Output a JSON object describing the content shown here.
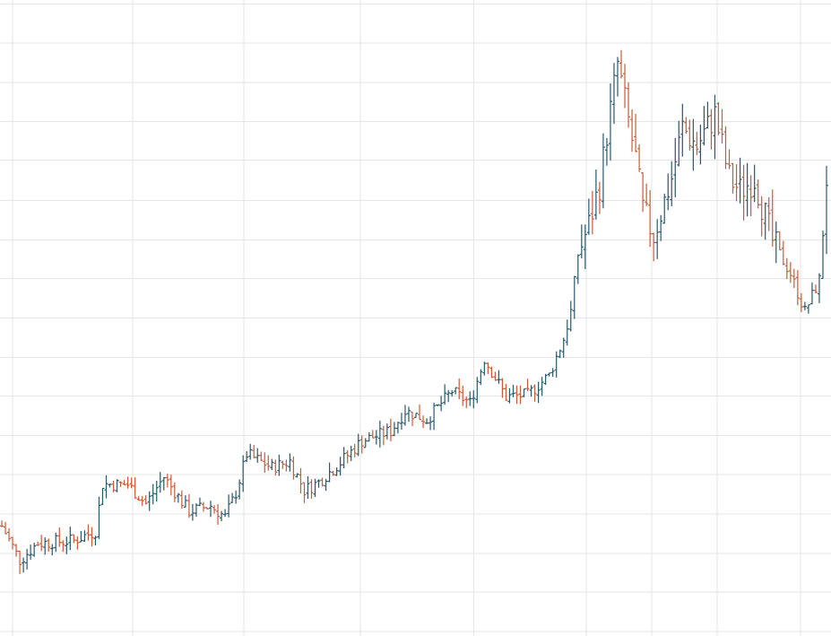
{
  "chart_data": {
    "type": "ohlc",
    "title": "",
    "xlabel": "",
    "ylabel": "",
    "ylim": [
      0,
      100
    ],
    "x_count": 230,
    "grid": true,
    "vertical_grid_at": [
      3.3,
      36.7,
      67.8,
      100.3,
      131.9,
      163.2,
      181.5,
      199.7,
      223.0
    ],
    "horizontal_grid_at": [
      99.4,
      93.2,
      87.0,
      80.9,
      74.8,
      68.5,
      62.3,
      56.2,
      50.0,
      43.8,
      37.7,
      31.5,
      25.4,
      19.2,
      13.0,
      6.9,
      0.7
    ],
    "colors": {
      "up": "#27586a",
      "down": "#c85a38",
      "grid": "#e6e6e6",
      "background": "#ffffff"
    },
    "key_points": [
      [
        0,
        17.3
      ],
      [
        5,
        11.9
      ],
      [
        10,
        14.6
      ],
      [
        20,
        15.0
      ],
      [
        26,
        16.5
      ],
      [
        28,
        23.9
      ],
      [
        35,
        23.8
      ],
      [
        40,
        20.8
      ],
      [
        45,
        25.0
      ],
      [
        52,
        19.6
      ],
      [
        58,
        20.5
      ],
      [
        62,
        18.7
      ],
      [
        65,
        22.5
      ],
      [
        68,
        28.6
      ],
      [
        75,
        26.5
      ],
      [
        80,
        27.5
      ],
      [
        84,
        22.9
      ],
      [
        88,
        24.2
      ],
      [
        94,
        27.3
      ],
      [
        100,
        30.7
      ],
      [
        108,
        32.2
      ],
      [
        112,
        35.4
      ],
      [
        118,
        34.0
      ],
      [
        125,
        38.5
      ],
      [
        130,
        36.6
      ],
      [
        134,
        43.6
      ],
      [
        140,
        37.6
      ],
      [
        146,
        37.9
      ],
      [
        152,
        41.0
      ],
      [
        156,
        46.7
      ],
      [
        158,
        51.0
      ],
      [
        160,
        60.0
      ],
      [
        163,
        64.6
      ],
      [
        166,
        71.0
      ],
      [
        168,
        79.0
      ],
      [
        171,
        90.0
      ],
      [
        173,
        84.0
      ],
      [
        176,
        75.0
      ],
      [
        178,
        67.0
      ],
      [
        181,
        63.0
      ],
      [
        186,
        72.0
      ],
      [
        189,
        80.0
      ],
      [
        193,
        77.0
      ],
      [
        198,
        82.0
      ],
      [
        202,
        72.0
      ],
      [
        205,
        70.0
      ],
      [
        209,
        72.0
      ],
      [
        214,
        62.0
      ],
      [
        219,
        57.0
      ],
      [
        223,
        51.0
      ],
      [
        227,
        56.0
      ],
      [
        229,
        72.0
      ]
    ]
  }
}
